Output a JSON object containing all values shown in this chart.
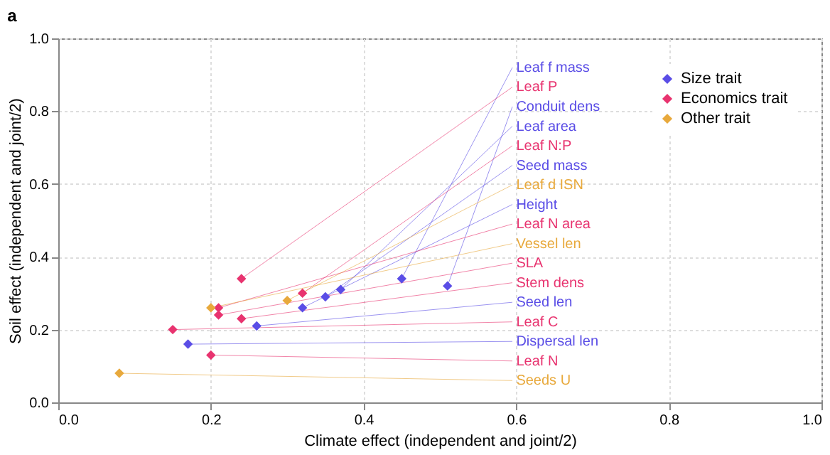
{
  "chart_data": {
    "type": "scatter",
    "title": "a",
    "xlabel": "Climate effect (independent and joint/2)",
    "ylabel": "Soil effect (independent and joint/2)",
    "xlim": [
      0,
      1
    ],
    "ylim": [
      0,
      1
    ],
    "xticks": [
      {
        "value": 0,
        "label": "0.0"
      },
      0.2,
      0.4,
      0.6,
      0.8,
      {
        "value": 1,
        "label": "1.0"
      }
    ],
    "yticks": [
      {
        "value": 0,
        "label": "0.0"
      },
      0.2,
      0.4,
      0.6,
      0.8,
      {
        "value": 1,
        "label": "1.0"
      }
    ],
    "grid": true,
    "legend": "top right",
    "marker": "diamond",
    "series": [
      {
        "name": "Size trait",
        "color": "#5a4de6",
        "x": [
          0.51,
          0.45,
          0.37,
          0.35,
          0.32,
          0.26,
          0.17
        ],
        "values": [
          0.32,
          0.34,
          0.31,
          0.29,
          0.26,
          0.21,
          0.16
        ]
      },
      {
        "name": "Economics trait",
        "color": "#e8336f",
        "x": [
          0.32,
          0.24,
          0.24,
          0.21,
          0.21,
          0.15,
          0.2
        ],
        "values": [
          0.3,
          0.34,
          0.23,
          0.26,
          0.24,
          0.2,
          0.13
        ]
      },
      {
        "name": "Other trait",
        "color": "#e8a93c",
        "x": [
          0.3,
          0.2,
          0.08
        ],
        "values": [
          0.28,
          0.26,
          0.08
        ]
      }
    ],
    "annotations": [
      {
        "text": "Conduit dens",
        "x": 0.51,
        "y": 0.32
      },
      {
        "text": "Leaf f mass",
        "x": 0.45,
        "y": 0.34
      },
      {
        "text": "Leaf area",
        "x": 0.37,
        "y": 0.31
      },
      {
        "text": "Seed mass",
        "x": 0.35,
        "y": 0.29
      },
      {
        "text": "Height",
        "x": 0.32,
        "y": 0.26
      },
      {
        "text": "Seed len",
        "x": 0.26,
        "y": 0.21
      },
      {
        "text": "Dispersal len",
        "x": 0.17,
        "y": 0.16
      },
      {
        "text": "Leaf N:P",
        "x": 0.32,
        "y": 0.3
      },
      {
        "text": "Leaf P",
        "x": 0.24,
        "y": 0.34
      },
      {
        "text": "Stem dens",
        "x": 0.24,
        "y": 0.23
      },
      {
        "text": "Leaf N area",
        "x": 0.21,
        "y": 0.26
      },
      {
        "text": "SLA",
        "x": 0.21,
        "y": 0.24
      },
      {
        "text": "Leaf C",
        "x": 0.15,
        "y": 0.2
      },
      {
        "text": "Leaf N",
        "x": 0.2,
        "y": 0.13
      },
      {
        "text": "Leaf d ISN",
        "x": 0.3,
        "y": 0.28
      },
      {
        "text": "Vessel len",
        "x": 0.2,
        "y": 0.26
      },
      {
        "text": "Seeds U",
        "x": 0.08,
        "y": 0.08
      }
    ]
  }
}
